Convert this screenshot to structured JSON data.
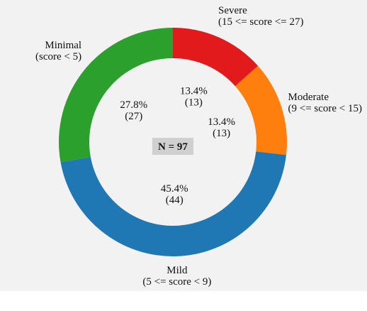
{
  "chart_data": {
    "type": "pie",
    "style": "donut",
    "center_label": "N = 97",
    "total": 97,
    "slices": [
      {
        "name": "Severe",
        "range": "(15 <= score <= 27)",
        "value": 13,
        "percent": "13.4%",
        "count_label": "(13)",
        "color": "#e31a1c"
      },
      {
        "name": "Moderate",
        "range": "(9 <= score < 15)",
        "value": 13,
        "percent": "13.4%",
        "count_label": "(13)",
        "color": "#ff7f0e"
      },
      {
        "name": "Mild",
        "range": "(5 <= score < 9)",
        "value": 44,
        "percent": "45.4%",
        "count_label": "(44)",
        "color": "#1f77b4"
      },
      {
        "name": "Minimal",
        "range": "(score < 5)",
        "value": 27,
        "percent": "27.8%",
        "count_label": "(27)",
        "color": "#2ca02c"
      }
    ],
    "start_angle_deg": 90,
    "direction": "clockwise"
  }
}
